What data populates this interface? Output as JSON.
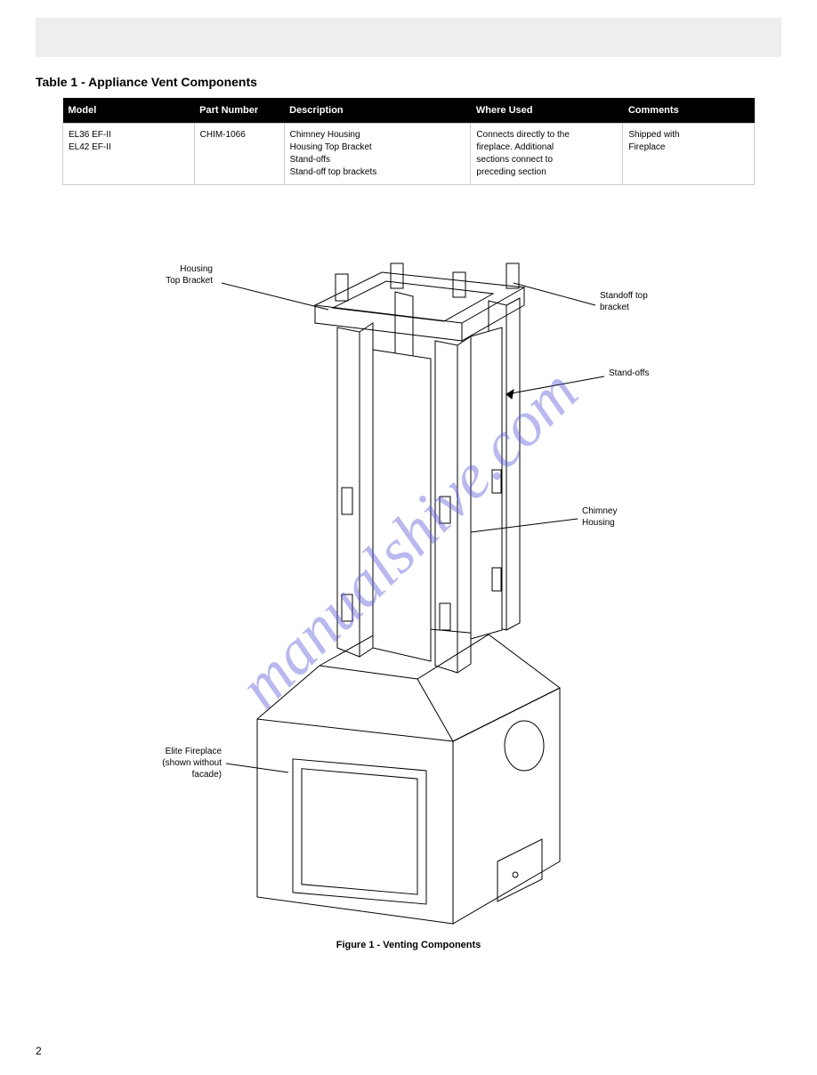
{
  "header": {
    "title": ""
  },
  "section": {
    "title": "Table 1 - Appliance Vent Components"
  },
  "table": {
    "columns": [
      "Model",
      "Part Number",
      "Description",
      "Where Used",
      "Comments"
    ],
    "rows": [
      [
        "EL36 EF-II\nEL42 EF-II",
        "CHIM-1066",
        "Chimney Housing\nHousing Top Bracket\nStand-offs\nStand-off top brackets",
        "Connects directly to the\nfireplace.  Additional\nsections connect to\npreceding section",
        "Shipped with\nFireplace"
      ]
    ]
  },
  "figure": {
    "callouts": {
      "housing_top": "Housing\nTop Bracket",
      "standoff_top": "Standoff top\nbracket",
      "standoffs": "Stand-offs",
      "chimney_housing": "Chimney\nHousing",
      "elite_fireplace": "Elite Fireplace\n(shown without\nfacade)"
    },
    "caption": "Figure 1 - Venting Components"
  },
  "page_number": "2",
  "watermark_text": "manualshive.com",
  "styling": {
    "page_bg": "#ffffff",
    "header_bg": "#eeeeee",
    "table_header_bg": "#000000",
    "table_header_color": "#ffffff",
    "table_border": "#cccccc",
    "watermark_color": "rgba(100,100,220,0.45)",
    "body_font_size": 11,
    "line_color": "#000000",
    "line_width": 1
  }
}
